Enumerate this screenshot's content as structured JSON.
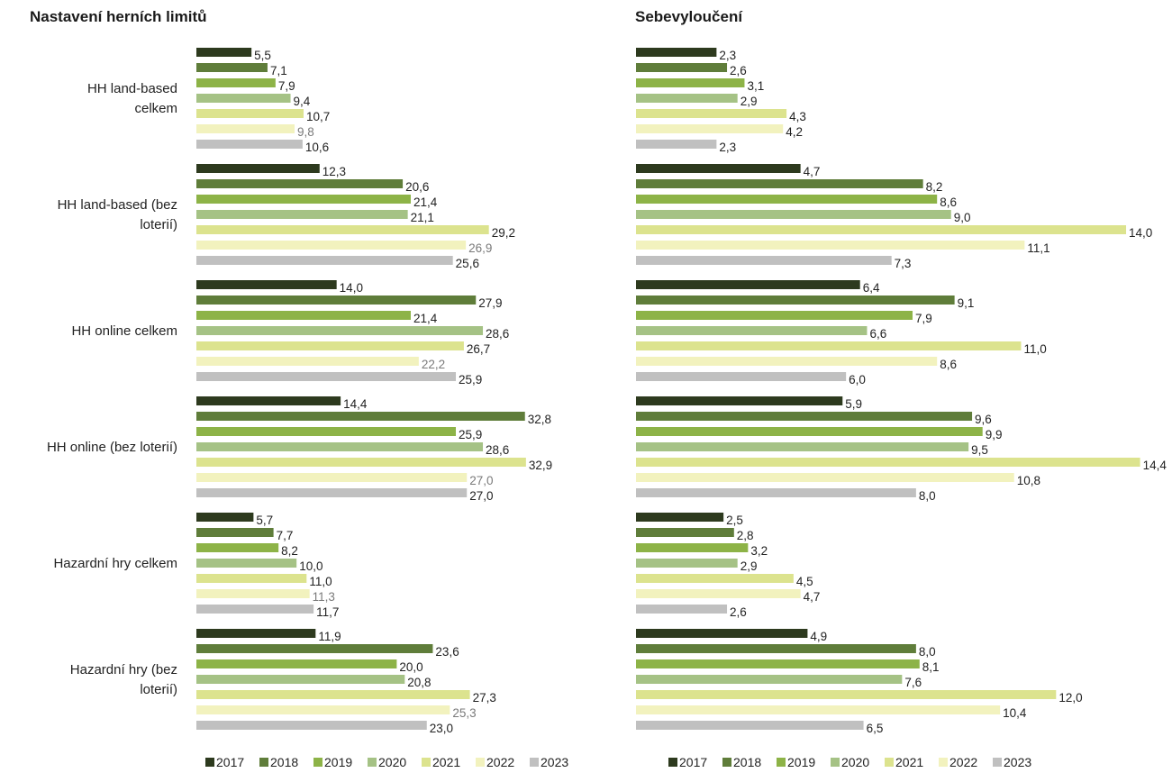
{
  "chart_data": [
    {
      "type": "bar",
      "orientation": "horizontal",
      "title": "Nastavení herních limitů",
      "categories": [
        "HH land-based celkem",
        "HH land-based (bez loterií)",
        "HH online celkem",
        "HH online (bez loterií)",
        "Hazardní hry celkem",
        "Hazardní hry (bez loterií)"
      ],
      "category_lines": [
        [
          "HH land-based",
          "celkem"
        ],
        [
          "HH land-based (bez",
          "loterií)"
        ],
        [
          "HH online celkem"
        ],
        [
          "HH online (bez loterií)"
        ],
        [
          "Hazardní hry celkem"
        ],
        [
          "Hazardní hry (bez",
          "loterií)"
        ]
      ],
      "series": [
        {
          "name": "2017",
          "color": "#2d3a1e",
          "values": [
            5.5,
            12.3,
            14.0,
            14.4,
            5.7,
            11.9
          ]
        },
        {
          "name": "2018",
          "color": "#5f7d3a",
          "values": [
            7.1,
            20.6,
            27.9,
            32.8,
            7.7,
            23.6
          ]
        },
        {
          "name": "2019",
          "color": "#8db347",
          "values": [
            7.9,
            21.4,
            21.4,
            25.9,
            8.2,
            20.0
          ]
        },
        {
          "name": "2020",
          "color": "#a5c285",
          "values": [
            9.4,
            21.1,
            28.6,
            28.6,
            10.0,
            20.8
          ]
        },
        {
          "name": "2021",
          "color": "#dce38e",
          "values": [
            10.7,
            29.2,
            26.7,
            32.9,
            11.0,
            27.3
          ]
        },
        {
          "name": "2022",
          "color": "#f2f2be",
          "values": [
            9.8,
            26.9,
            22.2,
            27.0,
            11.3,
            25.3
          ]
        },
        {
          "name": "2023",
          "color": "#c0c0c0",
          "values": [
            10.6,
            25.6,
            25.9,
            27.0,
            11.7,
            23.0
          ]
        }
      ],
      "legend": "bottom",
      "grid": false
    },
    {
      "type": "bar",
      "orientation": "horizontal",
      "title": "Sebevyloučení",
      "categories": [
        "HH land-based celkem",
        "HH land-based (bez loterií)",
        "HH online celkem",
        "HH online (bez loterií)",
        "Hazardní hry celkem",
        "Hazardní hry (bez loterií)"
      ],
      "series": [
        {
          "name": "2017",
          "color": "#2d3a1e",
          "values": [
            2.3,
            4.7,
            6.4,
            5.9,
            2.5,
            4.9
          ]
        },
        {
          "name": "2018",
          "color": "#5f7d3a",
          "values": [
            2.6,
            8.2,
            9.1,
            9.6,
            2.8,
            8.0
          ]
        },
        {
          "name": "2019",
          "color": "#8db347",
          "values": [
            3.1,
            8.6,
            7.9,
            9.9,
            3.2,
            8.1
          ]
        },
        {
          "name": "2020",
          "color": "#a5c285",
          "values": [
            2.9,
            9.0,
            6.6,
            9.5,
            2.9,
            7.6
          ]
        },
        {
          "name": "2021",
          "color": "#dce38e",
          "values": [
            4.3,
            14.0,
            11.0,
            14.4,
            4.5,
            12.0
          ]
        },
        {
          "name": "2022",
          "color": "#f2f2be",
          "values": [
            4.2,
            11.1,
            8.6,
            10.8,
            4.7,
            10.4
          ]
        },
        {
          "name": "2023",
          "color": "#c0c0c0",
          "values": [
            2.3,
            7.3,
            6.0,
            8.0,
            2.6,
            6.5
          ]
        }
      ],
      "legend": "bottom",
      "grid": false
    }
  ]
}
